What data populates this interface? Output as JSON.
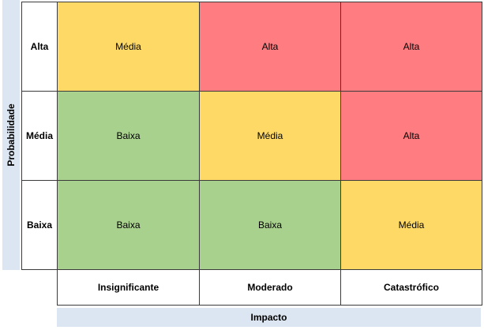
{
  "matrix": {
    "y_axis_title": "Probabilidade",
    "x_axis_title": "Impacto",
    "rows": [
      {
        "label": "Alta",
        "cells": [
          "Média",
          "Alta",
          "Alta"
        ]
      },
      {
        "label": "Média",
        "cells": [
          "Baixa",
          "Média",
          "Alta"
        ]
      },
      {
        "label": "Baixa",
        "cells": [
          "Baixa",
          "Baixa",
          "Média"
        ]
      }
    ],
    "columns": [
      "Insignificante",
      "Moderado",
      "Catastrófico"
    ],
    "colors": {
      "Alta": "#ff7c80",
      "Média": "#fed966",
      "Baixa": "#a9d18e",
      "axis_band": "#dce6f2"
    }
  }
}
